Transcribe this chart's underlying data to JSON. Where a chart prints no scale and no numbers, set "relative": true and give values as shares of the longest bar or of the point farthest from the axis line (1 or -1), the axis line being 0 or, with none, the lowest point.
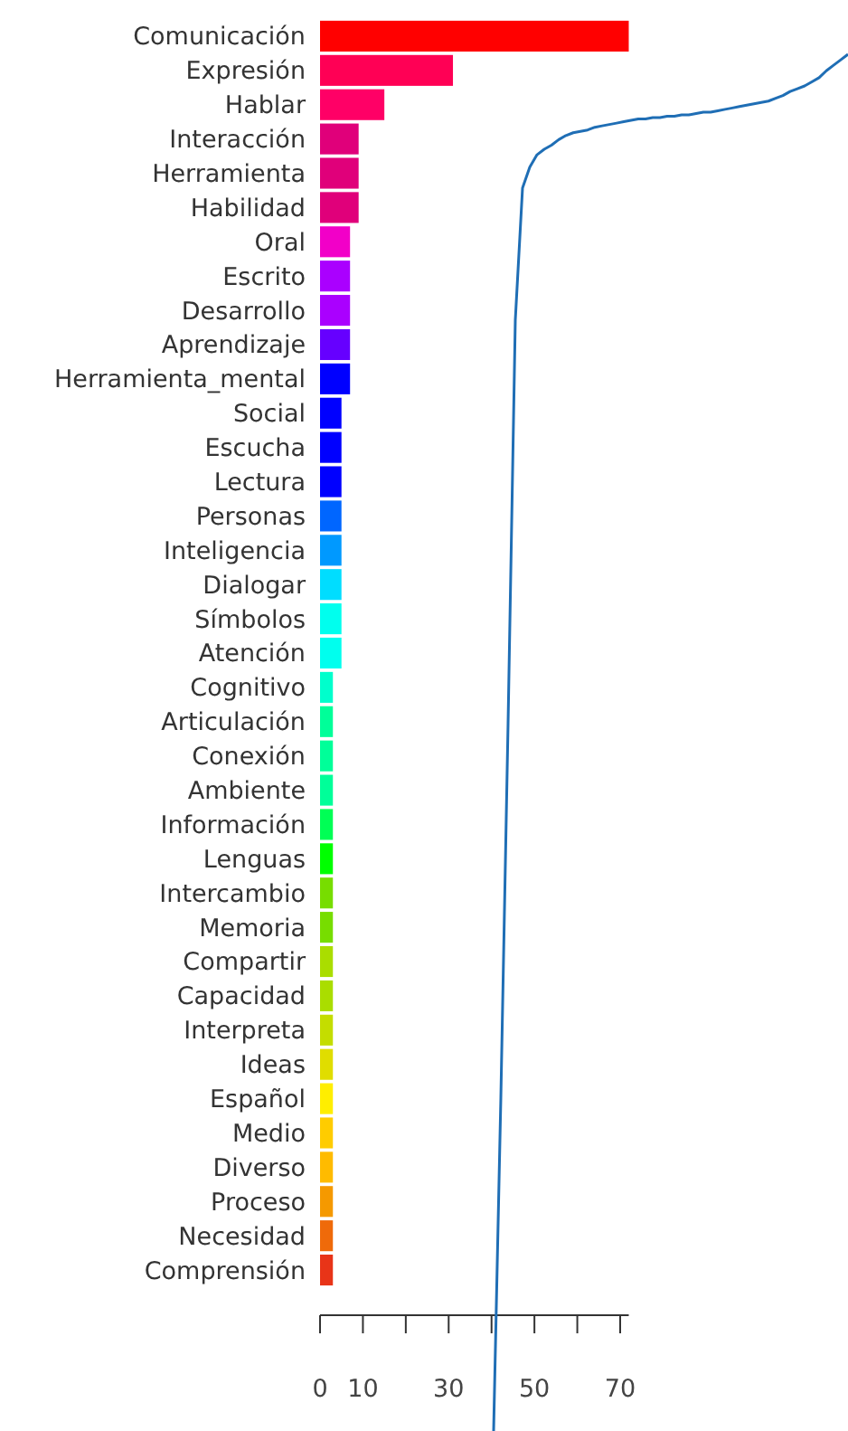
{
  "chart_data": [
    {
      "type": "bar",
      "orientation": "horizontal",
      "categories": [
        "Comunicación",
        "Expresión",
        "Hablar",
        "Interacción",
        "Herramienta",
        "Habilidad",
        "Oral",
        "Escrito",
        "Desarrollo",
        "Aprendizaje",
        "Herramienta_mental",
        "Social",
        "Escucha",
        "Lectura",
        "Personas",
        "Inteligencia",
        "Dialogar",
        "Símbolos",
        "Atención",
        "Cognitivo",
        "Articulación",
        "Conexión",
        "Ambiente",
        "Información",
        "Lenguas",
        "Intercambio",
        "Memoria",
        "Compartir",
        "Capacidad",
        "Interpreta",
        "Ideas",
        "Español",
        "Medio",
        "Diverso",
        "Proceso",
        "Necesidad",
        "Comprensión"
      ],
      "values": [
        72,
        31,
        15,
        9,
        9,
        9,
        7,
        7,
        7,
        7,
        7,
        5,
        5,
        5,
        5,
        5,
        5,
        5,
        5,
        3,
        3,
        3,
        3,
        3,
        3,
        3,
        3,
        3,
        3,
        3,
        3,
        3,
        3,
        3,
        3,
        3,
        3
      ],
      "colors": [
        "#ff0000",
        "#ff0055",
        "#ff0066",
        "#e0007a",
        "#e0007a",
        "#e0007a",
        "#f200c8",
        "#aa00ff",
        "#aa00ff",
        "#6600ff",
        "#0000ff",
        "#0000ff",
        "#0000ff",
        "#0000ff",
        "#0066ff",
        "#0099ff",
        "#00ddff",
        "#00ffee",
        "#00ffee",
        "#00ffcc",
        "#00ff99",
        "#00ff99",
        "#00ff99",
        "#00ff55",
        "#00ff00",
        "#77dd00",
        "#77dd00",
        "#aadd00",
        "#aadd00",
        "#c4dd00",
        "#e0dd00",
        "#ffee00",
        "#ffcc00",
        "#ffbb00",
        "#f59900",
        "#ef6a0a",
        "#e83418"
      ],
      "xlim": [
        0,
        72
      ],
      "xticks": [
        0,
        10,
        {
          "value": 20,
          "label": null
        },
        30,
        {
          "value": 40,
          "label": null
        },
        50,
        {
          "value": 60,
          "label": null
        },
        70
      ],
      "grid": false
    },
    {
      "type": "line",
      "relative": true,
      "categories": [
        null,
        null,
        null,
        null,
        null,
        null,
        null,
        null,
        null,
        null,
        null,
        null,
        null,
        null,
        null,
        null,
        null,
        null,
        null,
        null,
        null,
        null,
        null,
        null,
        null,
        null,
        null,
        null,
        null,
        null,
        null,
        null,
        null,
        null,
        null,
        null,
        null,
        null,
        null,
        null,
        null,
        null,
        null,
        null,
        null,
        null,
        null,
        null,
        null,
        null
      ],
      "series": [
        {
          "color": "#1f6eb5",
          "values": [
            0,
            0.242,
            0.514,
            0.807,
            0.903,
            0.918,
            0.927,
            0.931,
            0.934,
            0.938,
            0.941,
            0.943,
            0.944,
            0.945,
            0.947,
            0.948,
            0.949,
            0.95,
            0.951,
            0.952,
            0.953,
            0.953,
            0.954,
            0.954,
            0.955,
            0.955,
            0.956,
            0.956,
            0.957,
            0.958,
            0.958,
            0.959,
            0.96,
            0.961,
            0.962,
            0.963,
            0.964,
            0.965,
            0.966,
            0.968,
            0.97,
            0.973,
            0.975,
            0.977,
            0.98,
            0.983,
            0.988,
            0.992,
            0.996,
            1
          ]
        }
      ]
    }
  ]
}
